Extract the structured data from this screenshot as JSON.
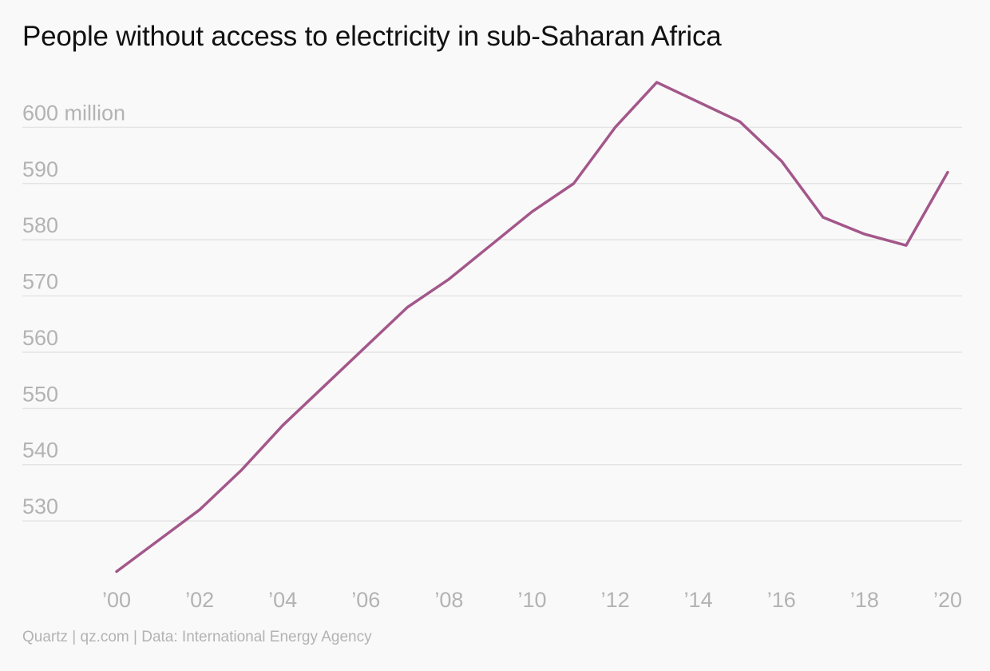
{
  "chart_data": {
    "type": "line",
    "title": "People without access to electricity in sub-Saharan Africa",
    "source": "Quartz | qz.com | Data: International Energy Agency",
    "x": [
      2000,
      2001,
      2002,
      2003,
      2004,
      2005,
      2006,
      2007,
      2008,
      2009,
      2010,
      2011,
      2012,
      2013,
      2014,
      2015,
      2016,
      2017,
      2018,
      2019,
      2020
    ],
    "x_tick_values": [
      2000,
      2002,
      2004,
      2006,
      2008,
      2010,
      2012,
      2014,
      2016,
      2018,
      2020
    ],
    "x_tick_labels": [
      "’00",
      "’02",
      "’04",
      "’06",
      "’08",
      "’10",
      "’12",
      "’14",
      "’16",
      "’18",
      "’20"
    ],
    "y_tick_values": [
      600,
      590,
      580,
      570,
      560,
      550,
      540,
      530
    ],
    "y_tick_labels": [
      "600 million",
      "590",
      "580",
      "570",
      "560",
      "550",
      "540",
      "530"
    ],
    "ylim": [
      520.5,
      609
    ],
    "xlim": [
      2000,
      2020
    ],
    "grid": true,
    "series": [
      {
        "color": "#a3578a",
        "values": [
          521,
          526.5,
          532,
          539,
          547,
          554,
          561,
          568,
          573,
          579,
          585,
          590,
          600,
          608,
          604.5,
          601,
          594,
          584,
          581,
          579,
          592
        ]
      }
    ]
  }
}
